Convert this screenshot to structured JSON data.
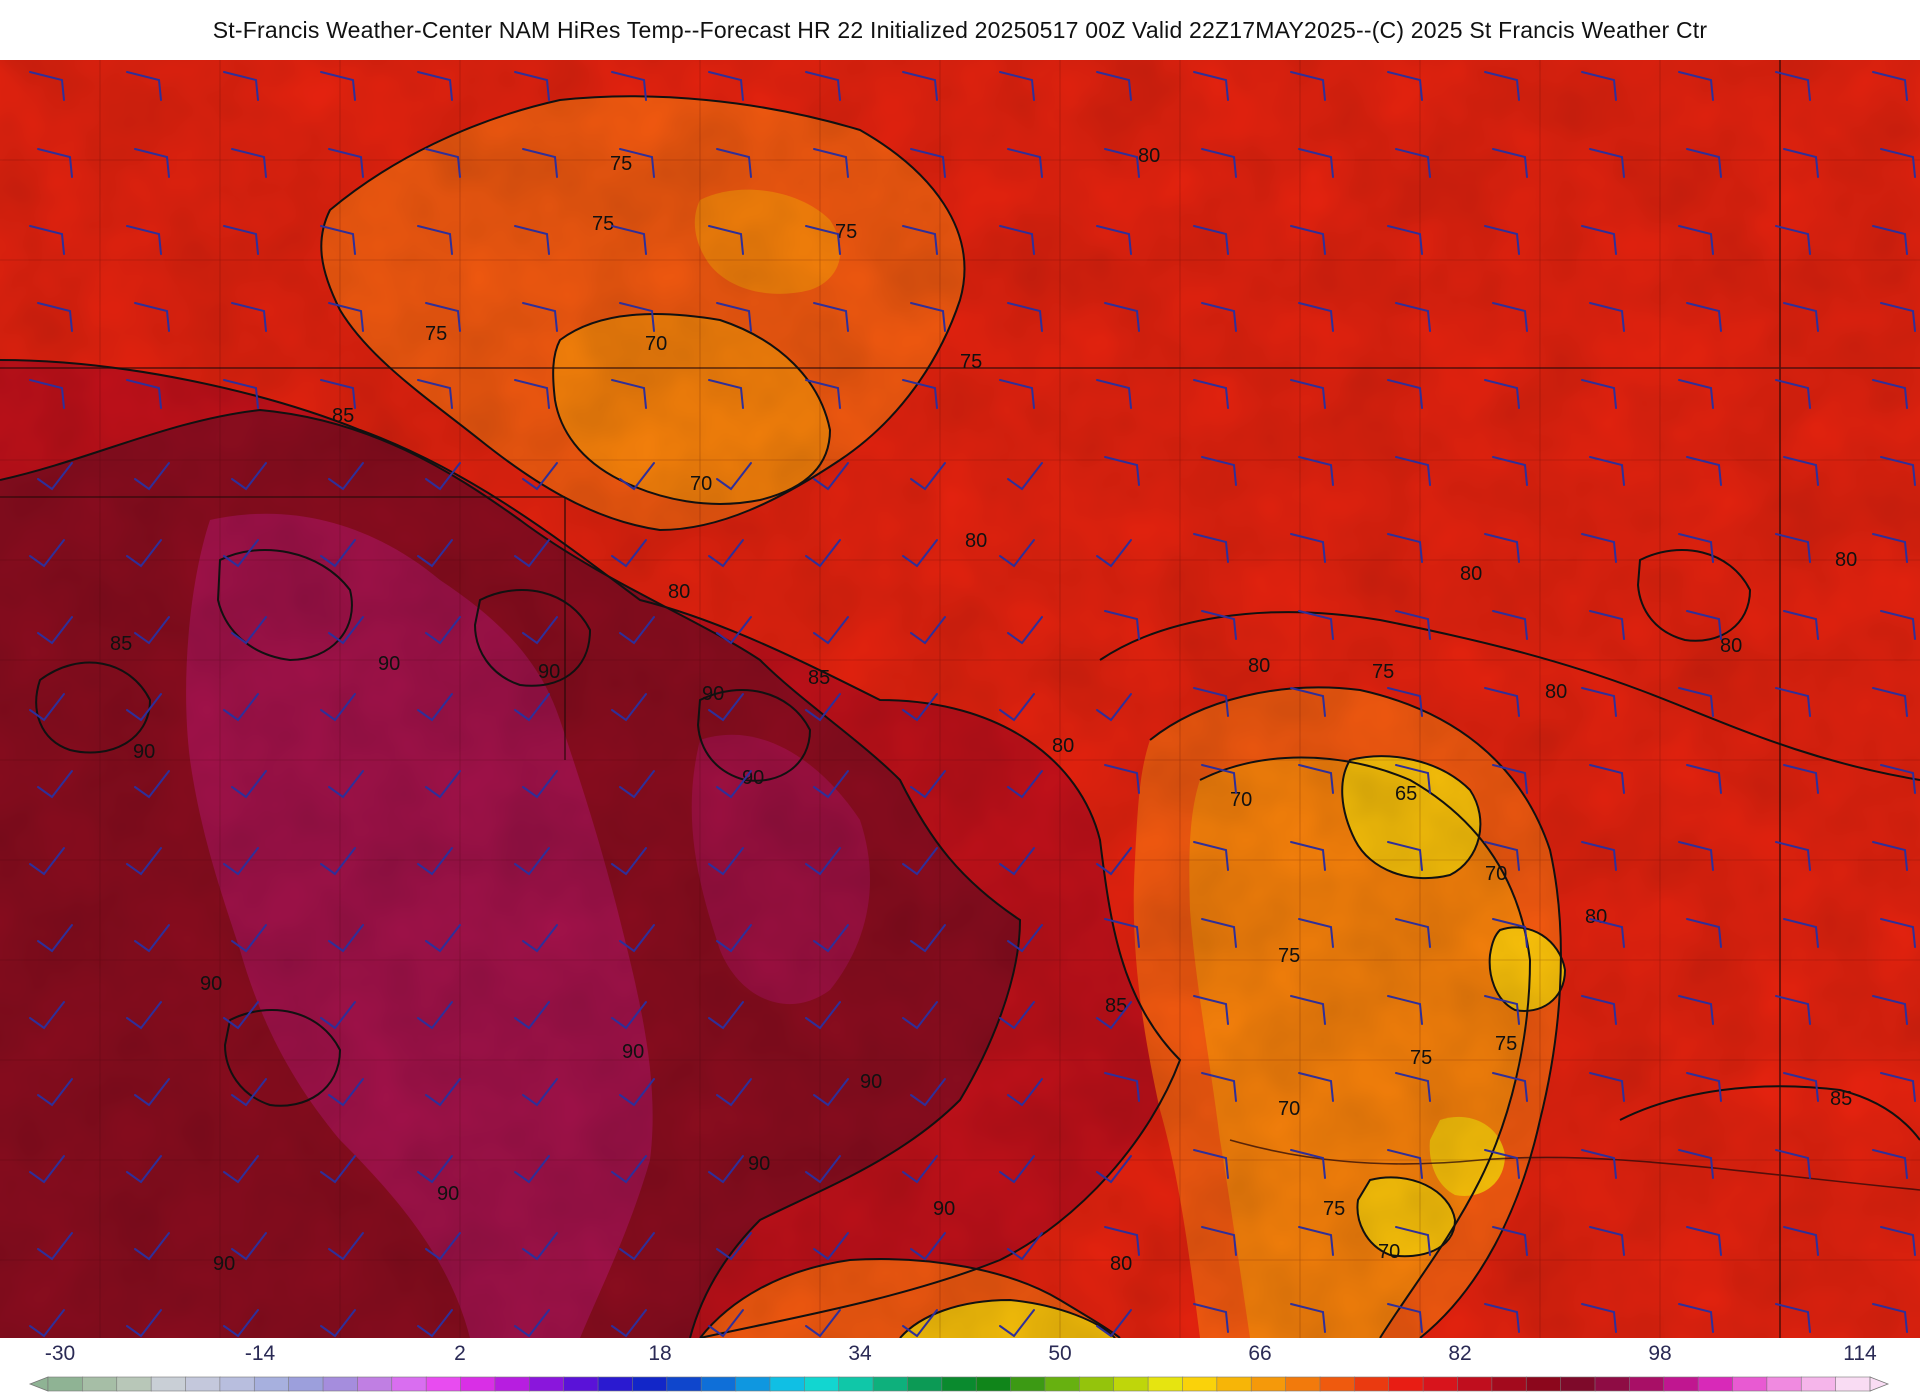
{
  "title": "St-Francis Weather-Center NAM HiRes Temp--Forecast HR 22 Initialized 20250517 00Z Valid 22Z17MAY2025--(C) 2025 St Francis Weather Ctr",
  "contour_labels": [
    "65",
    "70",
    "75",
    "80",
    "85",
    "90"
  ],
  "legend": {
    "tick_labels": [
      "-30",
      "-14",
      "2",
      "18",
      "34",
      "50",
      "66",
      "82",
      "98",
      "114"
    ],
    "colors": [
      "#8fb394",
      "#a6bea6",
      "#b8c7b8",
      "#c9cfd6",
      "#c4c8dc",
      "#b8bede",
      "#a7b0de",
      "#9c9fdc",
      "#a58ddd",
      "#c07fe3",
      "#d96ef0",
      "#e84cf0",
      "#d92fe6",
      "#b71ee0",
      "#8a16dc",
      "#5a12d8",
      "#2a1ad0",
      "#1226c8",
      "#0f46cc",
      "#0f6fd8",
      "#0f97e0",
      "#10bfe4",
      "#12d6d0",
      "#10c7a8",
      "#0eb07c",
      "#0c9a55",
      "#0a8a2e",
      "#10851a",
      "#3c9a14",
      "#67b110",
      "#94c40c",
      "#bfd60a",
      "#e6e410",
      "#fad20a",
      "#f7b507",
      "#f5990a",
      "#f27a0c",
      "#ef5a0e",
      "#ea3a10",
      "#e81d14",
      "#d8141c",
      "#c00e1e",
      "#a30a1d",
      "#8c071c",
      "#7e0a2a",
      "#8e0c44",
      "#a80f66",
      "#c01690",
      "#d829b8",
      "#e85ad2",
      "#f08ae0",
      "#f5b5ea",
      "#f9dcf3"
    ]
  },
  "colors": {
    "base_red": "#e8230f",
    "hot_90": "#8c0d1f",
    "hot_95": "#a3124a",
    "cool_75": "#f55a10",
    "cool_70": "#f9820b",
    "cool_65": "#fbc20a",
    "wind_barb": "#2e2f9a",
    "contour": "#111111",
    "border": "#2a0a0a"
  }
}
